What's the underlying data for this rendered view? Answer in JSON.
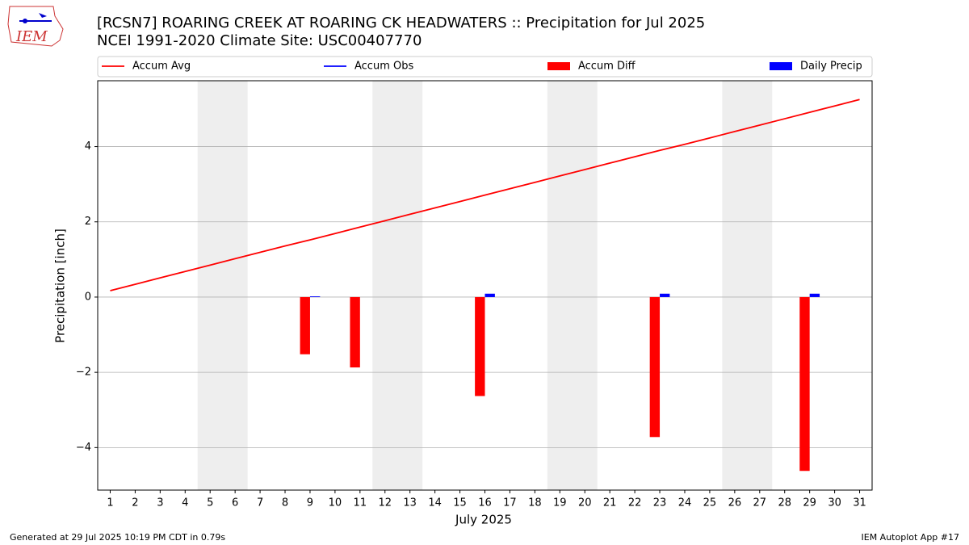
{
  "logo": "IEM",
  "footer_left": "Generated at 29 Jul 2025 10:19 PM CDT in 0.79s",
  "footer_right": "IEM Autoplot App #17",
  "chart_data": {
    "type": "bar_line",
    "title": "[RCSN7] ROARING CREEK  AT ROARING CK HEADWATERS :: Precipitation for Jul 2025",
    "subtitle": "NCEI 1991-2020 Climate Site: USC00407770",
    "xlabel": "July 2025",
    "ylabel": "Precipitation [inch]",
    "x": [
      1,
      2,
      3,
      4,
      5,
      6,
      7,
      8,
      9,
      10,
      11,
      12,
      13,
      14,
      15,
      16,
      17,
      18,
      19,
      20,
      21,
      22,
      23,
      24,
      25,
      26,
      27,
      28,
      29,
      30,
      31
    ],
    "xlim": [
      0.5,
      31.5
    ],
    "xticks": [
      1,
      2,
      3,
      4,
      5,
      6,
      7,
      8,
      9,
      10,
      11,
      12,
      13,
      14,
      15,
      16,
      17,
      18,
      19,
      20,
      21,
      22,
      23,
      24,
      25,
      26,
      27,
      28,
      29,
      30,
      31
    ],
    "ylim": [
      -5.13,
      5.75
    ],
    "yticks": [
      {
        "value": -4,
        "label": "−4"
      },
      {
        "value": -2,
        "label": "−2"
      },
      0,
      2,
      4
    ],
    "grid": true,
    "shaded_spans": [
      [
        4.5,
        6.5
      ],
      [
        11.5,
        13.5
      ],
      [
        18.5,
        20.5
      ],
      [
        25.5,
        27.5
      ]
    ],
    "shade_color": "#eeeeee",
    "series": [
      {
        "name": "Accum Avg",
        "kind": "line",
        "color": "#ff0000",
        "values": [
          0.17,
          0.34,
          0.51,
          0.68,
          0.85,
          1.02,
          1.19,
          1.36,
          1.52,
          1.69,
          1.86,
          2.03,
          2.2,
          2.37,
          2.54,
          2.71,
          2.88,
          3.05,
          3.22,
          3.39,
          3.56,
          3.73,
          3.9,
          4.06,
          4.23,
          4.4,
          4.57,
          4.74,
          4.91,
          5.08,
          5.25
        ]
      },
      {
        "name": "Accum Obs",
        "kind": "line",
        "color": "#0000ff",
        "values": [
          null,
          null,
          null,
          null,
          null,
          null,
          null,
          null,
          null,
          null,
          null,
          null,
          null,
          null,
          null,
          null,
          null,
          null,
          null,
          null,
          null,
          null,
          null,
          null,
          null,
          null,
          null,
          null,
          null,
          null,
          null
        ]
      },
      {
        "name": "Accum Diff",
        "kind": "bar_left",
        "color": "#ff0000",
        "values": [
          null,
          null,
          null,
          null,
          null,
          null,
          null,
          null,
          -1.52,
          null,
          -1.87,
          null,
          null,
          null,
          null,
          -2.63,
          null,
          null,
          null,
          null,
          null,
          null,
          -3.72,
          null,
          null,
          null,
          null,
          null,
          -4.62,
          null,
          null
        ]
      },
      {
        "name": "Daily Precip",
        "kind": "bar_right",
        "color": "#0000ff",
        "values": [
          0,
          0,
          0,
          0,
          0,
          0,
          0,
          0,
          0.02,
          0,
          0,
          0,
          0,
          0,
          0,
          0.09,
          0,
          0,
          0,
          0,
          0,
          0,
          0.09,
          0,
          0,
          0,
          0,
          0,
          0.09,
          0,
          0
        ]
      }
    ]
  }
}
